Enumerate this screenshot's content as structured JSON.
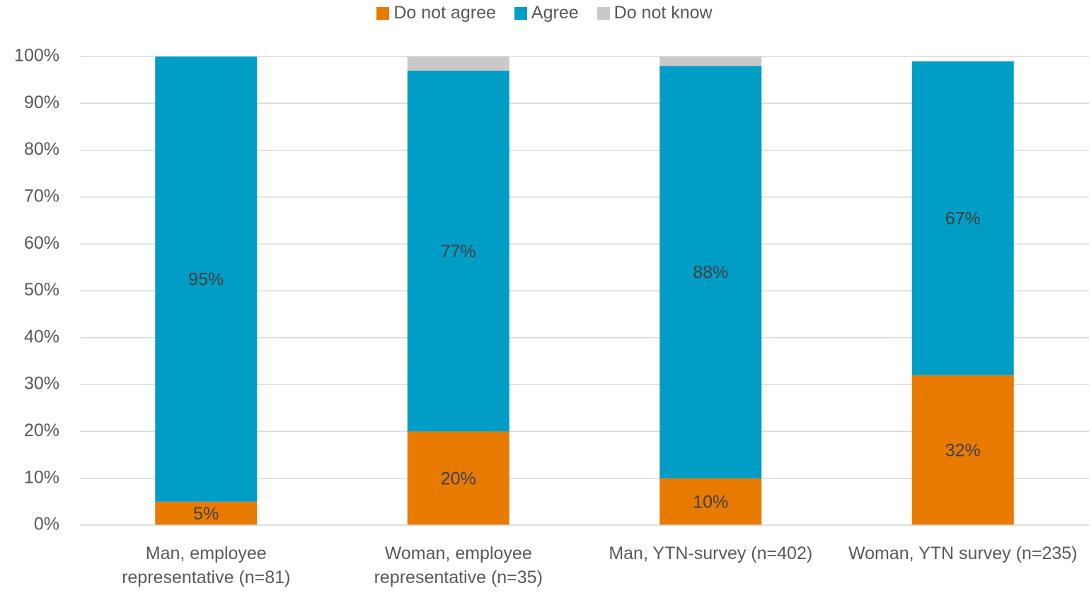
{
  "chart_data": {
    "type": "stacked_bar",
    "categories": [
      "Man, employee representative (n=81)",
      "Woman, employee representative (n=35)",
      "Man, YTN-survey (n=402)",
      "Woman, YTN survey (n=235)"
    ],
    "series": [
      {
        "name": "Do not agree",
        "color": "#e87a00",
        "values": [
          5,
          20,
          10,
          32
        ],
        "value_labels": [
          "5%",
          "20%",
          "10%",
          "32%"
        ]
      },
      {
        "name": "Agree",
        "color": "#009dc6",
        "values": [
          95,
          77,
          88,
          67
        ],
        "value_labels": [
          "95%",
          "77%",
          "88%",
          "67%"
        ]
      },
      {
        "name": "Do not know",
        "color": "#c9c9c9",
        "values": [
          0,
          3,
          2,
          0
        ]
      }
    ],
    "ylim": [
      0,
      100
    ],
    "yticks": [
      {
        "value": 0,
        "label": "0%"
      },
      {
        "value": 10,
        "label": "10%"
      },
      {
        "value": 20,
        "label": "20%"
      },
      {
        "value": 30,
        "label": "30%"
      },
      {
        "value": 40,
        "label": "40%"
      },
      {
        "value": 50,
        "label": "50%"
      },
      {
        "value": 60,
        "label": "60%"
      },
      {
        "value": 70,
        "label": "70%"
      },
      {
        "value": 80,
        "label": "80%"
      },
      {
        "value": 90,
        "label": "90%"
      },
      {
        "value": 100,
        "label": "100%"
      }
    ],
    "grid": true,
    "legend": "top"
  }
}
